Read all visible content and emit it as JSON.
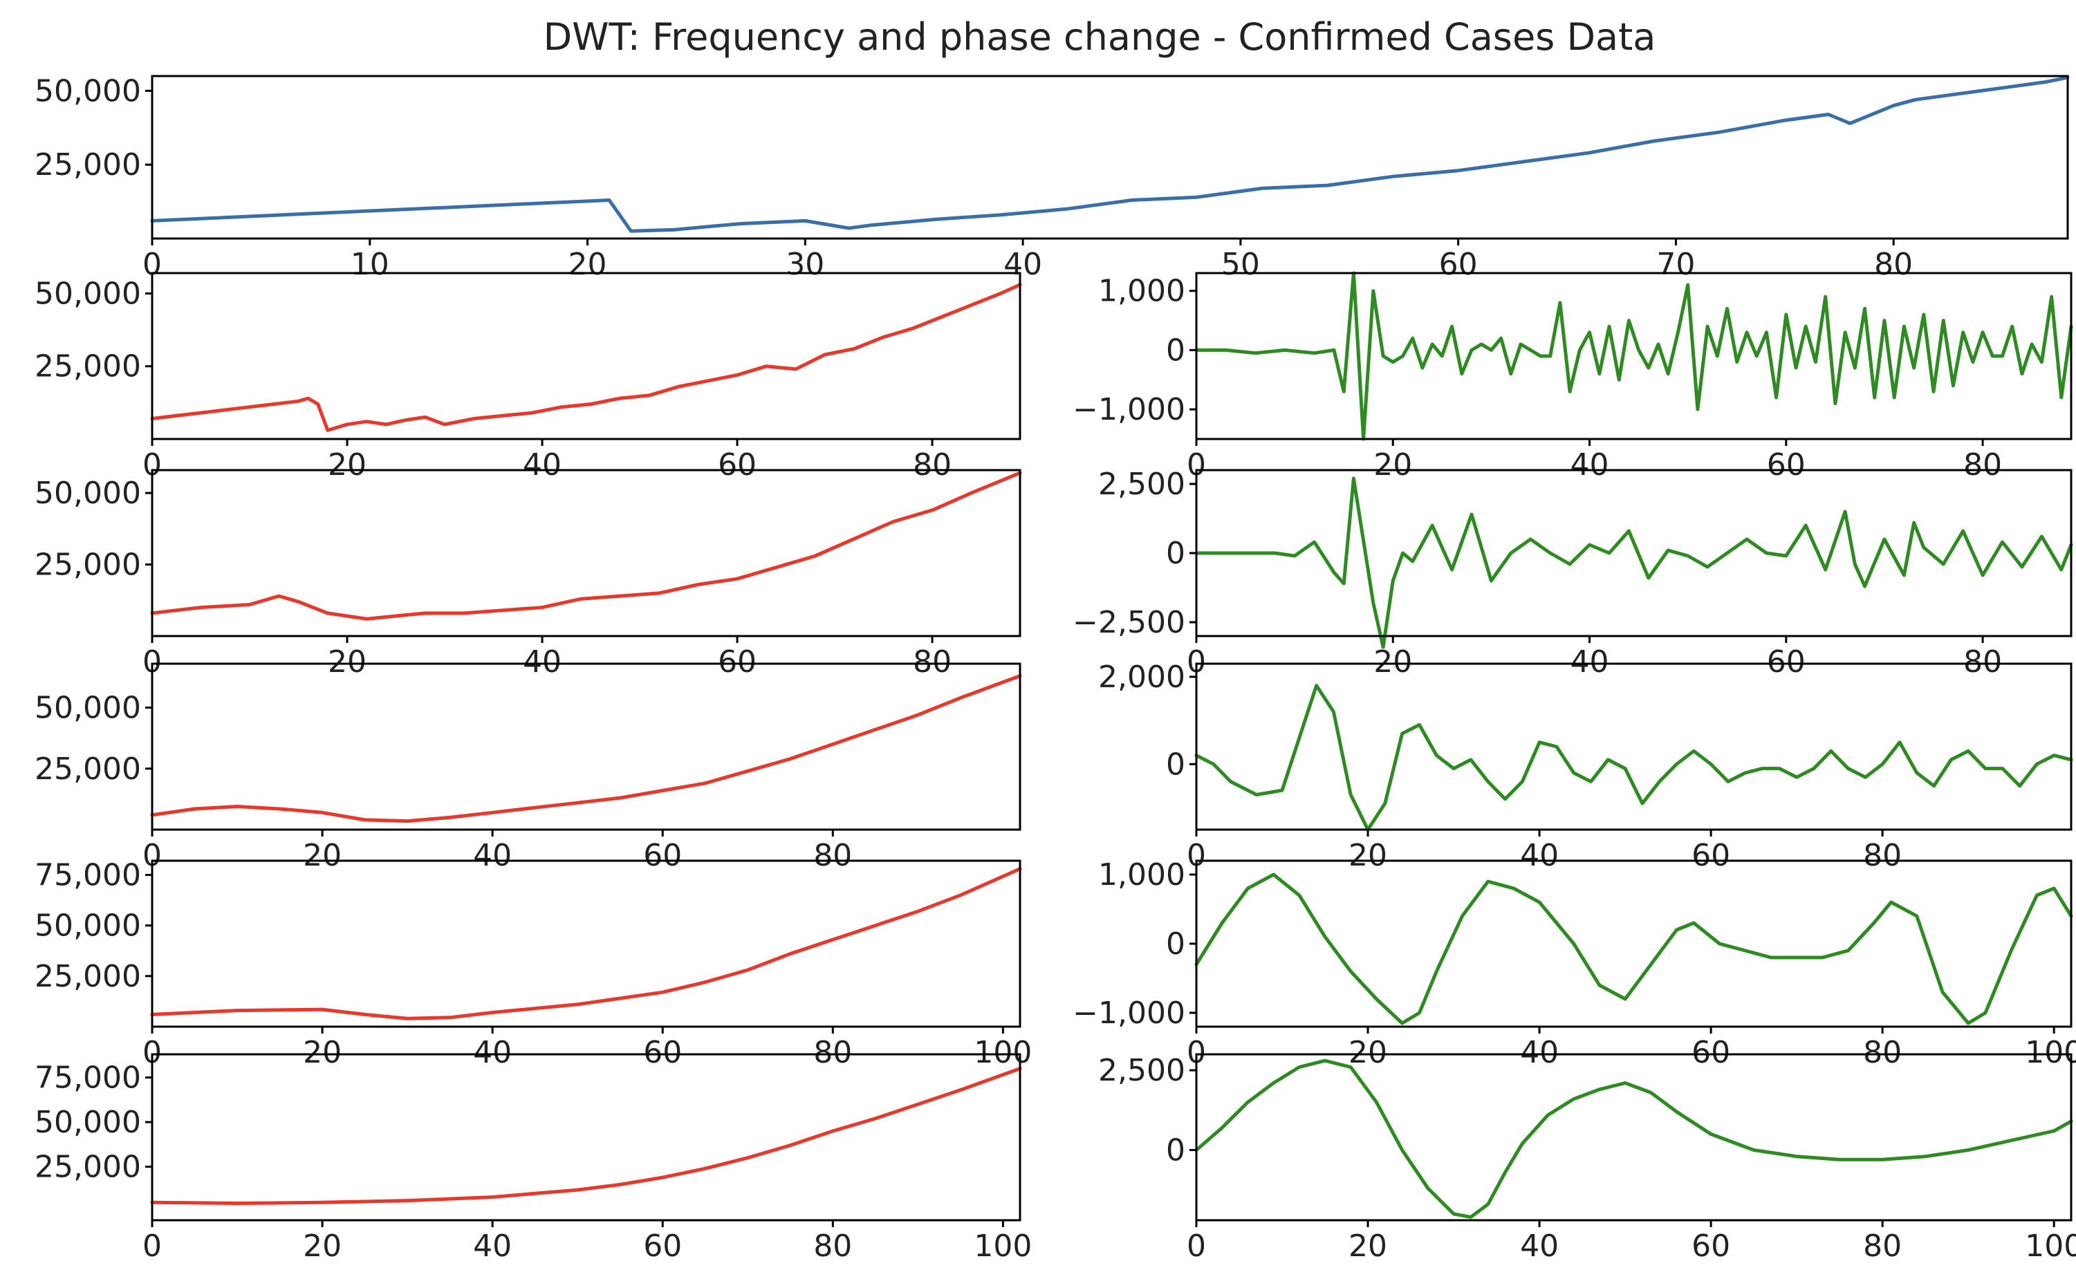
{
  "figure": {
    "title": "DWT: Frequency and phase change -  Confirmed Cases Data"
  },
  "colors": {
    "original": "#3a6ea8",
    "approximation": "#e8382b",
    "detail": "#2e8b22",
    "text": "#222222"
  },
  "chart_data": [
    {
      "id": "original",
      "type": "line",
      "title": "DWT: Frequency and phase change -  Confirmed Cases Data",
      "color": "#3a6ea8",
      "xlim": [
        0,
        88
      ],
      "ylim": [
        0,
        55000
      ],
      "xticks": [
        0,
        10,
        20,
        30,
        40,
        50,
        60,
        70,
        80
      ],
      "yticks": [
        25000,
        50000
      ],
      "ytick_labels": [
        "25,000",
        "50,000"
      ],
      "x": [
        0,
        3,
        6,
        9,
        12,
        15,
        18,
        21,
        22,
        24,
        27,
        30,
        32,
        33,
        36,
        39,
        42,
        45,
        48,
        51,
        54,
        57,
        60,
        63,
        66,
        69,
        72,
        75,
        77,
        78,
        80,
        81,
        84,
        87,
        88
      ],
      "y": [
        6000,
        7000,
        8000,
        9000,
        10000,
        11000,
        12000,
        13000,
        2500,
        3000,
        5000,
        6000,
        3500,
        4500,
        6500,
        8000,
        10000,
        13000,
        14000,
        17000,
        18000,
        21000,
        23000,
        26000,
        29000,
        33000,
        36000,
        40000,
        42000,
        39000,
        45000,
        47000,
        50000,
        53000,
        54500
      ]
    },
    {
      "id": "approx-1",
      "type": "line",
      "color": "#e8382b",
      "xlim": [
        0,
        89
      ],
      "ylim": [
        0,
        57000
      ],
      "xticks": [
        0,
        20,
        40,
        60,
        80
      ],
      "yticks": [
        25000,
        50000
      ],
      "ytick_labels": [
        "25,000",
        "50,000"
      ],
      "x": [
        0,
        5,
        10,
        15,
        16,
        17,
        18,
        20,
        22,
        24,
        26,
        28,
        30,
        33,
        36,
        39,
        42,
        45,
        48,
        51,
        54,
        57,
        60,
        63,
        66,
        69,
        72,
        75,
        78,
        81,
        84,
        87,
        89
      ],
      "y": [
        7000,
        9000,
        11000,
        13000,
        14000,
        12000,
        3000,
        5000,
        6000,
        5000,
        6500,
        7500,
        5000,
        7000,
        8000,
        9000,
        11000,
        12000,
        14000,
        15000,
        18000,
        20000,
        22000,
        25000,
        24000,
        29000,
        31000,
        35000,
        38000,
        42000,
        46000,
        50000,
        53000
      ]
    },
    {
      "id": "detail-1",
      "type": "line",
      "color": "#2e8b22",
      "xlim": [
        0,
        89
      ],
      "ylim": [
        -1500,
        1300
      ],
      "xticks": [
        0,
        20,
        40,
        60,
        80
      ],
      "yticks": [
        -1000,
        0,
        1000
      ],
      "ytick_labels": [
        "−1,000",
        "0",
        "1,000"
      ],
      "x": [
        0,
        3,
        6,
        9,
        12,
        14,
        15,
        16,
        17,
        18,
        19,
        20,
        21,
        22,
        23,
        24,
        25,
        26,
        27,
        28,
        29,
        30,
        31,
        32,
        33,
        34,
        35,
        36,
        37,
        38,
        39,
        40,
        41,
        42,
        43,
        44,
        45,
        46,
        47,
        48,
        49,
        50,
        51,
        52,
        53,
        54,
        55,
        56,
        57,
        58,
        59,
        60,
        61,
        62,
        63,
        64,
        65,
        66,
        67,
        68,
        69,
        70,
        71,
        72,
        73,
        74,
        75,
        76,
        77,
        78,
        79,
        80,
        81,
        82,
        83,
        84,
        85,
        86,
        87,
        88,
        89
      ],
      "y": [
        0,
        0,
        -50,
        0,
        -50,
        0,
        -700,
        1300,
        -1500,
        1000,
        -100,
        -200,
        -100,
        200,
        -300,
        100,
        -100,
        400,
        -400,
        0,
        100,
        0,
        200,
        -400,
        100,
        0,
        -100,
        -100,
        800,
        -700,
        0,
        300,
        -400,
        400,
        -500,
        500,
        0,
        -300,
        100,
        -400,
        300,
        1100,
        -1000,
        400,
        -100,
        700,
        -200,
        300,
        -100,
        300,
        -800,
        600,
        -300,
        400,
        -200,
        900,
        -900,
        300,
        -300,
        700,
        -800,
        500,
        -800,
        400,
        -300,
        600,
        -700,
        500,
        -600,
        300,
        -200,
        300,
        -100,
        -100,
        400,
        -400,
        100,
        -200,
        900,
        -800,
        400
      ]
    },
    {
      "id": "approx-2",
      "type": "line",
      "color": "#e8382b",
      "xlim": [
        0,
        89
      ],
      "ylim": [
        0,
        58000
      ],
      "xticks": [
        0,
        20,
        40,
        60,
        80
      ],
      "yticks": [
        25000,
        50000
      ],
      "ytick_labels": [
        "25,000",
        "50,000"
      ],
      "x": [
        0,
        5,
        10,
        13,
        15,
        18,
        22,
        25,
        28,
        32,
        36,
        40,
        44,
        48,
        52,
        56,
        60,
        64,
        68,
        72,
        76,
        80,
        84,
        89
      ],
      "y": [
        8000,
        10000,
        11000,
        14000,
        12000,
        8000,
        6000,
        7000,
        8000,
        8000,
        9000,
        10000,
        13000,
        14000,
        15000,
        18000,
        20000,
        24000,
        28000,
        34000,
        40000,
        44000,
        50000,
        57000
      ]
    },
    {
      "id": "detail-2",
      "type": "line",
      "color": "#2e8b22",
      "xlim": [
        0,
        89
      ],
      "ylim": [
        -3000,
        3000
      ],
      "xticks": [
        0,
        20,
        40,
        60,
        80
      ],
      "yticks": [
        -2500,
        0,
        2500
      ],
      "ytick_labels": [
        "−2,500",
        "0",
        "2,500"
      ],
      "x": [
        0,
        3,
        6,
        8,
        10,
        12,
        14,
        15,
        16,
        18,
        19,
        20,
        21,
        22,
        24,
        26,
        28,
        30,
        32,
        34,
        36,
        38,
        40,
        42,
        44,
        46,
        48,
        50,
        52,
        54,
        56,
        58,
        60,
        62,
        64,
        66,
        67,
        68,
        70,
        72,
        73,
        74,
        76,
        78,
        80,
        82,
        84,
        86,
        88,
        89
      ],
      "y": [
        0,
        0,
        0,
        0,
        -100,
        400,
        -700,
        -1100,
        2700,
        -1800,
        -3400,
        -1000,
        0,
        -300,
        1000,
        -600,
        1400,
        -1000,
        0,
        500,
        0,
        -400,
        300,
        0,
        800,
        -900,
        100,
        -100,
        -500,
        0,
        500,
        0,
        -100,
        1000,
        -600,
        1500,
        -400,
        -1200,
        500,
        -800,
        1100,
        200,
        -400,
        800,
        -800,
        400,
        -500,
        600,
        -600,
        300
      ]
    },
    {
      "id": "approx-3",
      "type": "line",
      "color": "#e8382b",
      "xlim": [
        0,
        102
      ],
      "ylim": [
        0,
        68000
      ],
      "xticks": [
        0,
        20,
        40,
        60,
        80
      ],
      "yticks": [
        25000,
        50000
      ],
      "ytick_labels": [
        "25,000",
        "50,000"
      ],
      "x": [
        0,
        5,
        10,
        15,
        20,
        25,
        30,
        35,
        40,
        45,
        50,
        55,
        60,
        65,
        70,
        75,
        80,
        85,
        90,
        95,
        102
      ],
      "y": [
        6000,
        8500,
        9500,
        8500,
        7000,
        4000,
        3500,
        5000,
        7000,
        9000,
        11000,
        13000,
        16000,
        19000,
        24000,
        29000,
        35000,
        41000,
        47000,
        54000,
        63000
      ]
    },
    {
      "id": "detail-3",
      "type": "line",
      "color": "#2e8b22",
      "xlim": [
        0,
        102
      ],
      "ylim": [
        -1500,
        2300
      ],
      "xticks": [
        0,
        20,
        40,
        60,
        80
      ],
      "yticks": [
        0,
        2000
      ],
      "ytick_labels": [
        "0",
        "2,000"
      ],
      "x": [
        0,
        2,
        4,
        7,
        10,
        12,
        14,
        16,
        18,
        20,
        22,
        24,
        26,
        28,
        30,
        32,
        34,
        36,
        38,
        40,
        42,
        44,
        46,
        48,
        50,
        52,
        54,
        56,
        58,
        60,
        62,
        64,
        66,
        68,
        70,
        72,
        74,
        76,
        78,
        80,
        82,
        84,
        86,
        88,
        90,
        92,
        94,
        96,
        98,
        100,
        102
      ],
      "y": [
        200,
        0,
        -400,
        -700,
        -600,
        600,
        1800,
        1200,
        -700,
        -1500,
        -900,
        700,
        900,
        200,
        -100,
        100,
        -400,
        -800,
        -400,
        500,
        400,
        -200,
        -400,
        100,
        -100,
        -900,
        -400,
        0,
        300,
        0,
        -400,
        -200,
        -100,
        -100,
        -300,
        -100,
        300,
        -100,
        -300,
        0,
        500,
        -200,
        -500,
        100,
        300,
        -100,
        -100,
        -500,
        0,
        200,
        100
      ]
    },
    {
      "id": "approx-4",
      "type": "line",
      "color": "#e8382b",
      "xlim": [
        0,
        102
      ],
      "ylim": [
        0,
        82000
      ],
      "xticks": [
        0,
        20,
        40,
        60,
        80,
        100
      ],
      "yticks": [
        25000,
        50000,
        75000
      ],
      "ytick_labels": [
        "25,000",
        "50,000",
        "75,000"
      ],
      "x": [
        0,
        10,
        20,
        25,
        30,
        35,
        40,
        50,
        60,
        65,
        70,
        75,
        80,
        85,
        90,
        95,
        102
      ],
      "y": [
        6000,
        8000,
        8500,
        6000,
        4000,
        4500,
        7000,
        11000,
        17000,
        22000,
        28000,
        36000,
        43000,
        50000,
        57000,
        65000,
        78000
      ]
    },
    {
      "id": "detail-4",
      "type": "line",
      "color": "#2e8b22",
      "xlim": [
        0,
        102
      ],
      "ylim": [
        -1200,
        1200
      ],
      "xticks": [
        0,
        20,
        40,
        60,
        80,
        100
      ],
      "yticks": [
        -1000,
        0,
        1000
      ],
      "ytick_labels": [
        "−1,000",
        "0",
        "1,000"
      ],
      "x": [
        0,
        3,
        6,
        9,
        12,
        15,
        18,
        21,
        24,
        26,
        28,
        31,
        34,
        37,
        40,
        44,
        47,
        50,
        53,
        56,
        58,
        61,
        64,
        67,
        70,
        73,
        76,
        79,
        81,
        84,
        87,
        90,
        92,
        95,
        98,
        100,
        102
      ],
      "y": [
        -300,
        300,
        800,
        1000,
        700,
        100,
        -400,
        -800,
        -1150,
        -1000,
        -400,
        400,
        900,
        800,
        600,
        0,
        -600,
        -800,
        -300,
        200,
        300,
        0,
        -100,
        -200,
        -200,
        -200,
        -100,
        300,
        600,
        400,
        -700,
        -1150,
        -1000,
        -100,
        700,
        800,
        400
      ]
    },
    {
      "id": "approx-5",
      "type": "line",
      "color": "#e8382b",
      "xlim": [
        0,
        102
      ],
      "ylim": [
        -5000,
        88000
      ],
      "xticks": [
        0,
        20,
        40,
        60,
        80,
        100
      ],
      "yticks": [
        25000,
        50000,
        75000
      ],
      "ytick_labels": [
        "25,000",
        "50,000",
        "75,000"
      ],
      "x": [
        0,
        10,
        20,
        30,
        40,
        50,
        55,
        60,
        65,
        70,
        75,
        80,
        85,
        90,
        95,
        102
      ],
      "y": [
        5000,
        4500,
        5000,
        6000,
        8000,
        12000,
        15000,
        19000,
        24000,
        30000,
        37000,
        45000,
        52000,
        60000,
        68000,
        80000
      ]
    },
    {
      "id": "detail-5",
      "type": "line",
      "color": "#2e8b22",
      "xlim": [
        0,
        102
      ],
      "ylim": [
        -2200,
        3000
      ],
      "xticks": [
        0,
        20,
        40,
        60,
        80,
        100
      ],
      "yticks": [
        0,
        2500
      ],
      "ytick_labels": [
        "0",
        "2,500"
      ],
      "x": [
        0,
        3,
        6,
        9,
        12,
        15,
        18,
        21,
        24,
        27,
        30,
        32,
        34,
        36,
        38,
        41,
        44,
        47,
        50,
        53,
        56,
        60,
        65,
        70,
        75,
        80,
        85,
        90,
        95,
        100,
        102
      ],
      "y": [
        0,
        700,
        1500,
        2100,
        2600,
        2800,
        2600,
        1500,
        0,
        -1200,
        -2000,
        -2100,
        -1700,
        -700,
        200,
        1100,
        1600,
        1900,
        2100,
        1800,
        1200,
        500,
        0,
        -200,
        -300,
        -300,
        -200,
        0,
        300,
        600,
        900
      ]
    }
  ]
}
